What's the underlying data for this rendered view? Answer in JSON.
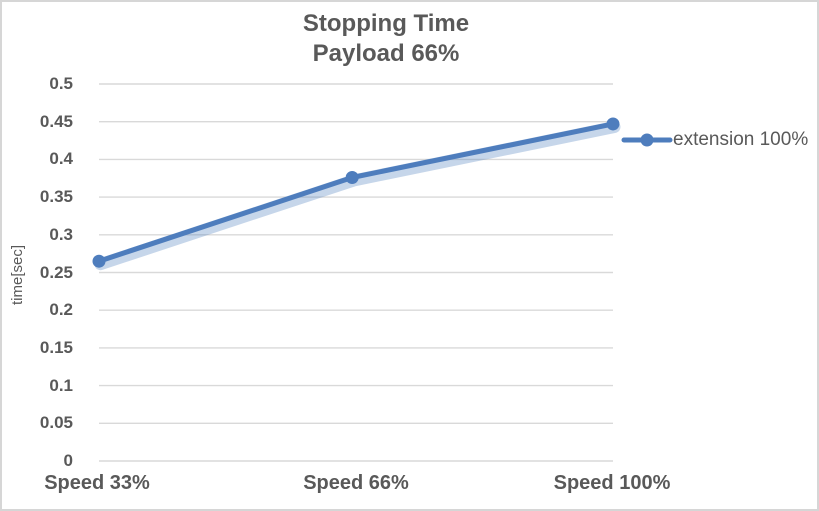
{
  "chart_data": {
    "type": "line",
    "title": "Stopping Time",
    "subtitle": "Payload 66%",
    "ylabel": "time[sec]",
    "xlabel": "",
    "categories": [
      "Speed 33%",
      "Speed 66%",
      "Speed 100%"
    ],
    "x_numeric": [
      33,
      66,
      100
    ],
    "series": [
      {
        "name": "extension 100%",
        "values": [
          0.265,
          0.376,
          0.447
        ],
        "color": "#4e7dbd",
        "shadow_color": "rgba(79,127,190,0.32)",
        "marker": "circle"
      }
    ],
    "ylim": [
      0,
      0.5
    ],
    "ytick_step": 0.05,
    "yticks": [
      "0",
      "0.05",
      "0.1",
      "0.15",
      "0.2",
      "0.25",
      "0.3",
      "0.35",
      "0.4",
      "0.45",
      "0.5"
    ],
    "grid": true,
    "grid_color": "#d9d9d9",
    "text_color": "#595959",
    "legend_position": "right"
  }
}
